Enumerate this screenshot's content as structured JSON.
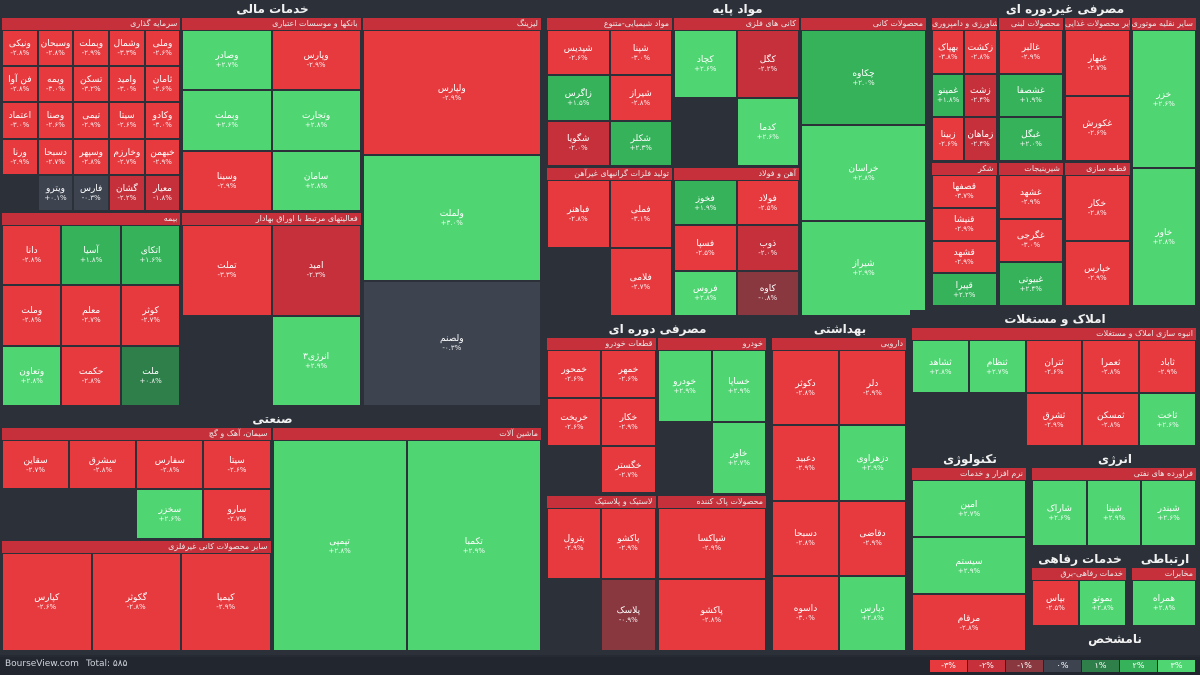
{
  "footer": {
    "site": "BourseView.com",
    "total": "Total: ۵۸۵"
  },
  "legend": [
    {
      "label": "-۳%",
      "color": "#e63a3f"
    },
    {
      "label": "-۲%",
      "color": "#c5303a"
    },
    {
      "label": "-۱%",
      "color": "#8a3840"
    },
    {
      "label": "۰%",
      "color": "#3d4450"
    },
    {
      "label": "۱%",
      "color": "#2f7f4a"
    },
    {
      "label": "۲%",
      "color": "#36b25a"
    },
    {
      "label": "۳%",
      "color": "#4fd672"
    }
  ],
  "colors": {
    "down3": "#e63a3f",
    "down2": "#c5303a",
    "down1": "#8a3840",
    "flat": "#3d4450",
    "up1": "#2f7f4a",
    "up2": "#36b25a",
    "up3": "#4fd672"
  },
  "chart_data": {
    "type": "heatmap",
    "title": "",
    "sectors": [
      {
        "name": "خدمات مالی",
        "groups": [
          {
            "name": "سرمایه گذاری",
            "tiles": [
              {
                "sym": "وملی",
                "chg": "-۲.۶%"
              },
              {
                "sym": "وشمال",
                "chg": "-۳.۳%"
              },
              {
                "sym": "وبملت",
                "chg": "-۲.۹%"
              },
              {
                "sym": "وسبحان",
                "chg": "-۲.۸%"
              },
              {
                "sym": "ونیکی",
                "chg": "-۲.۸%"
              },
              {
                "sym": "ثامان",
                "chg": "-۲.۶%"
              },
              {
                "sym": "وامید",
                "chg": "-۳.۰%"
              },
              {
                "sym": "تسکن",
                "chg": "-۳.۲%"
              },
              {
                "sym": "ویمه",
                "chg": "-۳.۰%"
              },
              {
                "sym": "فن آوا",
                "chg": "-۲.۸%"
              },
              {
                "sym": "وکادو",
                "chg": "-۳.۰%"
              },
              {
                "sym": "سیتا",
                "chg": "-۲.۶%"
              },
              {
                "sym": "تیمی",
                "chg": "-۲.۹%"
              },
              {
                "sym": "وصنا",
                "chg": "-۲.۶%"
              },
              {
                "sym": "اعتماد",
                "chg": "-۳.۰%"
              },
              {
                "sym": "خبهمن",
                "chg": "-۲.۹%"
              },
              {
                "sym": "وخارزم",
                "chg": "-۲.۷%"
              },
              {
                "sym": "وسپهر",
                "chg": "-۲.۸%"
              },
              {
                "sym": "دسبحا",
                "chg": "-۲.۷%"
              },
              {
                "sym": "ورنا",
                "chg": "-۲.۹%"
              },
              {
                "sym": "معیار",
                "chg": "-۱.۸%"
              },
              {
                "sym": "گشان",
                "chg": "-۲.۲%"
              },
              {
                "sym": "فارس",
                "chg": "-۰.۳%"
              },
              {
                "sym": "ویترو",
                "chg": "+۰.۱%"
              }
            ]
          },
          {
            "name": "بیمه",
            "tiles": [
              {
                "sym": "اتکای",
                "chg": "+۱.۶%"
              },
              {
                "sym": "آسیا",
                "chg": "+۱.۸%"
              },
              {
                "sym": "دانا",
                "chg": "-۲.۸%"
              },
              {
                "sym": "کوثر",
                "chg": "-۲.۷%"
              },
              {
                "sym": "معلم",
                "chg": "-۲.۷%"
              },
              {
                "sym": "وملت",
                "chg": "-۲.۸%"
              },
              {
                "sym": "ملت",
                "chg": "+۰.۸%"
              },
              {
                "sym": "حکمت",
                "chg": "-۲.۸%"
              },
              {
                "sym": "وتعاون",
                "chg": "+۲.۸%"
              }
            ]
          },
          {
            "name": "بانکها و موسسات اعتباری",
            "tiles": [
              {
                "sym": "وپارس",
                "chg": "-۲.۹%"
              },
              {
                "sym": "وصادر",
                "chg": "+۲.۷%"
              },
              {
                "sym": "وتجارت",
                "chg": "+۲.۸%"
              },
              {
                "sym": "وبملت",
                "chg": "+۲.۶%"
              },
              {
                "sym": "سامان",
                "chg": "+۲.۸%"
              },
              {
                "sym": "وسینا",
                "chg": "-۲.۹%"
              }
            ]
          },
          {
            "name": "فعالیتهای مرتبط با اوراق بهادار",
            "tiles": [
              {
                "sym": "امید",
                "chg": "-۲.۳%"
              },
              {
                "sym": "تملت",
                "chg": "-۳.۳%"
              },
              {
                "sym": "انرژی۳",
                "chg": "+۲.۹%"
              }
            ]
          },
          {
            "name": "لیزینگ",
            "tiles": [
              {
                "sym": "ولپارس",
                "chg": "-۲.۹%"
              },
              {
                "sym": "ولملت",
                "chg": "+۳.۰%"
              },
              {
                "sym": "ولصنم",
                "chg": "-۰.۳%"
              }
            ]
          }
        ]
      },
      {
        "name": "مواد پایه",
        "groups": [
          {
            "name": "مواد شیمیایی-متنوع",
            "tiles": [
              {
                "sym": "شپنا",
                "chg": "-۳.۰%"
              },
              {
                "sym": "شپدیس",
                "chg": "-۲.۶%"
              },
              {
                "sym": "شیراز",
                "chg": "-۲.۸%"
              },
              {
                "sym": "زاگرس",
                "chg": "+۱.۵%"
              },
              {
                "sym": "شکلر",
                "chg": "+۲.۳%"
              },
              {
                "sym": "شگویا",
                "chg": "-۲.۰%"
              }
            ]
          },
          {
            "name": "تولید فلزات گرانبهای غیرآهن",
            "tiles": [
              {
                "sym": "فملی",
                "chg": "-۳.۱%"
              },
              {
                "sym": "فباهنر",
                "chg": "-۲.۸%"
              },
              {
                "sym": "فلامی",
                "chg": "-۲.۷%"
              }
            ]
          },
          {
            "name": "کانی های فلزی",
            "tiles": [
              {
                "sym": "کگل",
                "chg": "-۲.۲%"
              },
              {
                "sym": "کچاد",
                "chg": "+۲.۶%"
              },
              {
                "sym": "کدما",
                "chg": "+۲.۶%"
              }
            ]
          },
          {
            "name": "آهن و فولاد",
            "tiles": [
              {
                "sym": "فولاد",
                "chg": "-۲.۵%"
              },
              {
                "sym": "فخوز",
                "chg": "+۱.۹%"
              },
              {
                "sym": "ذوب",
                "chg": "-۲.۰%"
              },
              {
                "sym": "فسپا",
                "chg": "-۲.۵%"
              },
              {
                "sym": "کاوه",
                "chg": "-۰.۸%"
              },
              {
                "sym": "فروس",
                "chg": "+۲.۸%"
              }
            ]
          },
          {
            "name": "محصولات کانی",
            "tiles": [
              {
                "sym": "چکاوه",
                "chg": "+۲.۰%"
              },
              {
                "sym": "خراسان",
                "chg": "+۲.۸%"
              },
              {
                "sym": "شیراز",
                "chg": "+۲.۹%"
              }
            ]
          }
        ]
      },
      {
        "name": "مصرفی غیردوره ای",
        "groups": [
          {
            "name": "محصولات کشاورزی و دامپروری",
            "tiles": [
              {
                "sym": "زکشت",
                "chg": "-۲.۸%"
              },
              {
                "sym": "بهپاک",
                "chg": "-۳.۸%"
              },
              {
                "sym": "زشت",
                "chg": "-۲.۴%"
              },
              {
                "sym": "غمینو",
                "chg": "+۱.۸%"
              },
              {
                "sym": "زماهان",
                "chg": "-۲.۴%"
              },
              {
                "sym": "زبینا",
                "chg": "-۲.۶%"
              }
            ]
          },
          {
            "name": "شکر",
            "tiles": [
              {
                "sym": "قصفها",
                "chg": "-۳.۷%"
              },
              {
                "sym": "قنیشا",
                "chg": "-۲.۹%"
              },
              {
                "sym": "قشهد",
                "chg": "-۲.۹%"
              },
              {
                "sym": "قپیرا",
                "chg": "+۲.۲%"
              }
            ]
          },
          {
            "name": "محصولات لبنی",
            "tiles": [
              {
                "sym": "غالبر",
                "chg": "-۲.۹%"
              },
              {
                "sym": "غشصفا",
                "chg": "+۱.۹%"
              },
              {
                "sym": "غبگل",
                "chg": "+۲.۰%"
              }
            ]
          },
          {
            "name": "شیرینیجات",
            "tiles": [
              {
                "sym": "غشهد",
                "chg": "-۲.۹%"
              },
              {
                "sym": "غگرجی",
                "chg": "-۳.۰%"
              },
              {
                "sym": "غبیوتی",
                "chg": "+۲.۴%"
              }
            ]
          },
          {
            "name": "سایر محصولات غذایی",
            "tiles": [
              {
                "sym": "غبهار",
                "chg": "-۲.۷%"
              },
              {
                "sym": "غکورش",
                "chg": "-۲.۶%"
              }
            ]
          },
          {
            "name": "قطعه سازی",
            "tiles": [
              {
                "sym": "خکار",
                "chg": "-۲.۸%"
              },
              {
                "sym": "خپارس",
                "chg": "-۲.۹%"
              }
            ]
          },
          {
            "name": "سایر نقلیه موتوری",
            "tiles": [
              {
                "sym": "خزر",
                "chg": "+۲.۶%"
              },
              {
                "sym": "خاور",
                "chg": "+۲.۸%"
              }
            ]
          }
        ]
      },
      {
        "name": "مصرفی دوره ای",
        "groups": [
          {
            "name": "قطعات خودرو",
            "tiles": [
              {
                "sym": "خمهر",
                "chg": "-۲.۶%"
              },
              {
                "sym": "خمحور",
                "chg": "-۲.۶%"
              },
              {
                "sym": "خکار",
                "chg": "-۲.۹%"
              },
              {
                "sym": "خریخت",
                "chg": "-۲.۶%"
              },
              {
                "sym": "خگستر",
                "chg": "-۲.۷%"
              }
            ]
          },
          {
            "name": "لاستیک و پلاستیک",
            "tiles": [
              {
                "sym": "پاکشو",
                "chg": "-۲.۹%"
              },
              {
                "sym": "پترول",
                "chg": "-۲.۹%"
              },
              {
                "sym": "پلاسک",
                "chg": "-۰.۹%"
              }
            ]
          },
          {
            "name": "خودرو",
            "tiles": [
              {
                "sym": "خساپا",
                "chg": "+۲.۹%"
              },
              {
                "sym": "خودرو",
                "chg": "+۲.۹%"
              },
              {
                "sym": "خاور",
                "chg": "+۲.۷%"
              }
            ]
          },
          {
            "name": "محصولات پاک کننده",
            "tiles": [
              {
                "sym": "شپاکسا",
                "chg": "-۲.۹%"
              },
              {
                "sym": "پاکشو",
                "chg": "-۲.۸%"
              }
            ]
          }
        ]
      },
      {
        "name": "بهداشتی",
        "groups": [
          {
            "name": "دارویی",
            "tiles": [
              {
                "sym": "دلر",
                "chg": "-۲.۹%"
              },
              {
                "sym": "دکوثر",
                "chg": "-۲.۸%"
              },
              {
                "sym": "دزهراوی",
                "chg": "+۲.۹%"
              },
              {
                "sym": "دعبید",
                "chg": "-۲.۹%"
              },
              {
                "sym": "دقاضی",
                "chg": "-۲.۹%"
              },
              {
                "sym": "دسبحا",
                "chg": "-۲.۸%"
              },
              {
                "sym": "دپارس",
                "chg": "+۲.۸%"
              },
              {
                "sym": "داسوه",
                "chg": "-۳.۰%"
              }
            ]
          }
        ]
      },
      {
        "name": "املاک و مستغلات",
        "groups": [
          {
            "name": "انبوه سازی املاک و مستغلات",
            "tiles": [
              {
                "sym": "ثاباد",
                "chg": "-۲.۹%"
              },
              {
                "sym": "ثعمرا",
                "chg": "-۲.۸%"
              },
              {
                "sym": "ثتران",
                "chg": "-۲.۶%"
              },
              {
                "sym": "ثنظام",
                "chg": "+۲.۷%"
              },
              {
                "sym": "ثشاهد",
                "chg": "+۲.۸%"
              },
              {
                "sym": "ثاخت",
                "chg": "+۲.۶%"
              },
              {
                "sym": "ثمسکن",
                "chg": "-۲.۸%"
              },
              {
                "sym": "ثشرق",
                "chg": "-۲.۹%"
              }
            ]
          }
        ]
      },
      {
        "name": "صنعتی",
        "groups": [
          {
            "name": "سیمان، آهک و گچ",
            "tiles": [
              {
                "sym": "سیتا",
                "chg": "-۲.۶%"
              },
              {
                "sym": "سفارس",
                "chg": "-۲.۸%"
              },
              {
                "sym": "سشرق",
                "chg": "-۲.۸%"
              },
              {
                "sym": "سقاین",
                "chg": "-۲.۷%"
              },
              {
                "sym": "سارو",
                "chg": "-۲.۷%"
              },
              {
                "sym": "سخزر",
                "chg": "+۲.۶%"
              }
            ]
          },
          {
            "name": "سایر محصولات کانی غیرفلزی",
            "tiles": [
              {
                "sym": "کیمیا",
                "chg": "-۲.۹%"
              },
              {
                "sym": "گکوثر",
                "chg": "-۲.۸%"
              },
              {
                "sym": "کپارس",
                "chg": "-۲.۶%"
              }
            ]
          },
          {
            "name": "ماشین آلات",
            "tiles": [
              {
                "sym": "تکمبا",
                "chg": "+۲.۹%"
              },
              {
                "sym": "تپمپی",
                "chg": "+۲.۸%"
              }
            ]
          }
        ]
      },
      {
        "name": "تکنولوژی",
        "groups": [
          {
            "name": "نرم افزار و خدمات",
            "tiles": [
              {
                "sym": "امین",
                "chg": "+۲.۷%"
              },
              {
                "sym": "سیستم",
                "chg": "+۲.۹%"
              },
              {
                "sym": "مرقام",
                "chg": "-۲.۸%"
              }
            ]
          }
        ]
      },
      {
        "name": "انرژی",
        "groups": [
          {
            "name": "فراورده های نفتی",
            "tiles": [
              {
                "sym": "شبندر",
                "chg": "+۲.۶%"
              },
              {
                "sym": "شپنا",
                "chg": "+۲.۹%"
              },
              {
                "sym": "شاراک",
                "chg": "+۲.۶%"
              }
            ]
          }
        ]
      },
      {
        "name": "خدمات رفاهی",
        "groups": [
          {
            "name": "خدمات رفاهی-برق",
            "tiles": [
              {
                "sym": "بموتو",
                "chg": "+۲.۸%"
              },
              {
                "sym": "بپاس",
                "chg": "-۲.۵%"
              }
            ]
          }
        ]
      },
      {
        "name": "ارتباطی",
        "groups": [
          {
            "name": "مخابرات",
            "tiles": [
              {
                "sym": "همراه",
                "chg": "+۲.۸%"
              }
            ]
          }
        ]
      },
      {
        "name": "نامشخص",
        "groups": []
      }
    ]
  }
}
